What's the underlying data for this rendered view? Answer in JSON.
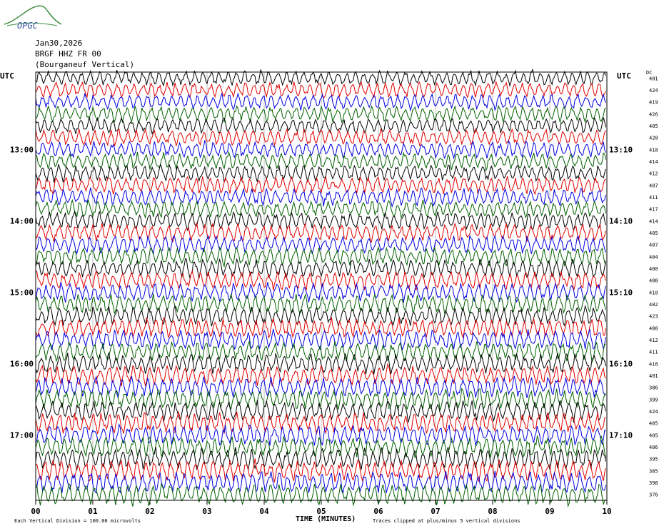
{
  "header": {
    "logo_text": "OPGC",
    "date": "Jan30,2026",
    "station": "BRGF HHZ FR 00",
    "station_name": "(Bourganeuf Vertical)"
  },
  "utc_left": "UTC",
  "utc_right": "UTC",
  "dc_label": "DC",
  "footer": {
    "xlabel": "TIME (MINUTES)",
    "division_note": "Each Vertical Division = 100.00 microvolts",
    "clip_note": "Traces clipped at plus/minus 5 vertical divisions"
  },
  "colors": {
    "cycle": [
      "#000000",
      "#e00000",
      "#0000e0",
      "#006000"
    ]
  },
  "chart_data": {
    "type": "line",
    "title": "",
    "xlabel": "TIME (MINUTES)",
    "x_ticks": [
      "00",
      "01",
      "02",
      "03",
      "04",
      "05",
      "06",
      "07",
      "08",
      "09",
      "10"
    ],
    "xlim": [
      0,
      10
    ],
    "row_count": 36,
    "left_time_labels": [
      "13:00",
      "14:00",
      "15:00",
      "16:00",
      "17:00"
    ],
    "right_time_labels": [
      "13:10",
      "14:10",
      "15:10",
      "16:10",
      "17:10"
    ],
    "dc_values": [
      "401",
      "424",
      "419",
      "426",
      "405",
      "420",
      "418",
      "414",
      "412",
      "407",
      "411",
      "417",
      "414",
      "405",
      "407",
      "404",
      "400",
      "408",
      "410",
      "402",
      "423",
      "400",
      "412",
      "411",
      "416",
      "401",
      "386",
      "399",
      "424",
      "405",
      "405",
      "406",
      "395",
      "385",
      "398",
      "376"
    ]
  }
}
